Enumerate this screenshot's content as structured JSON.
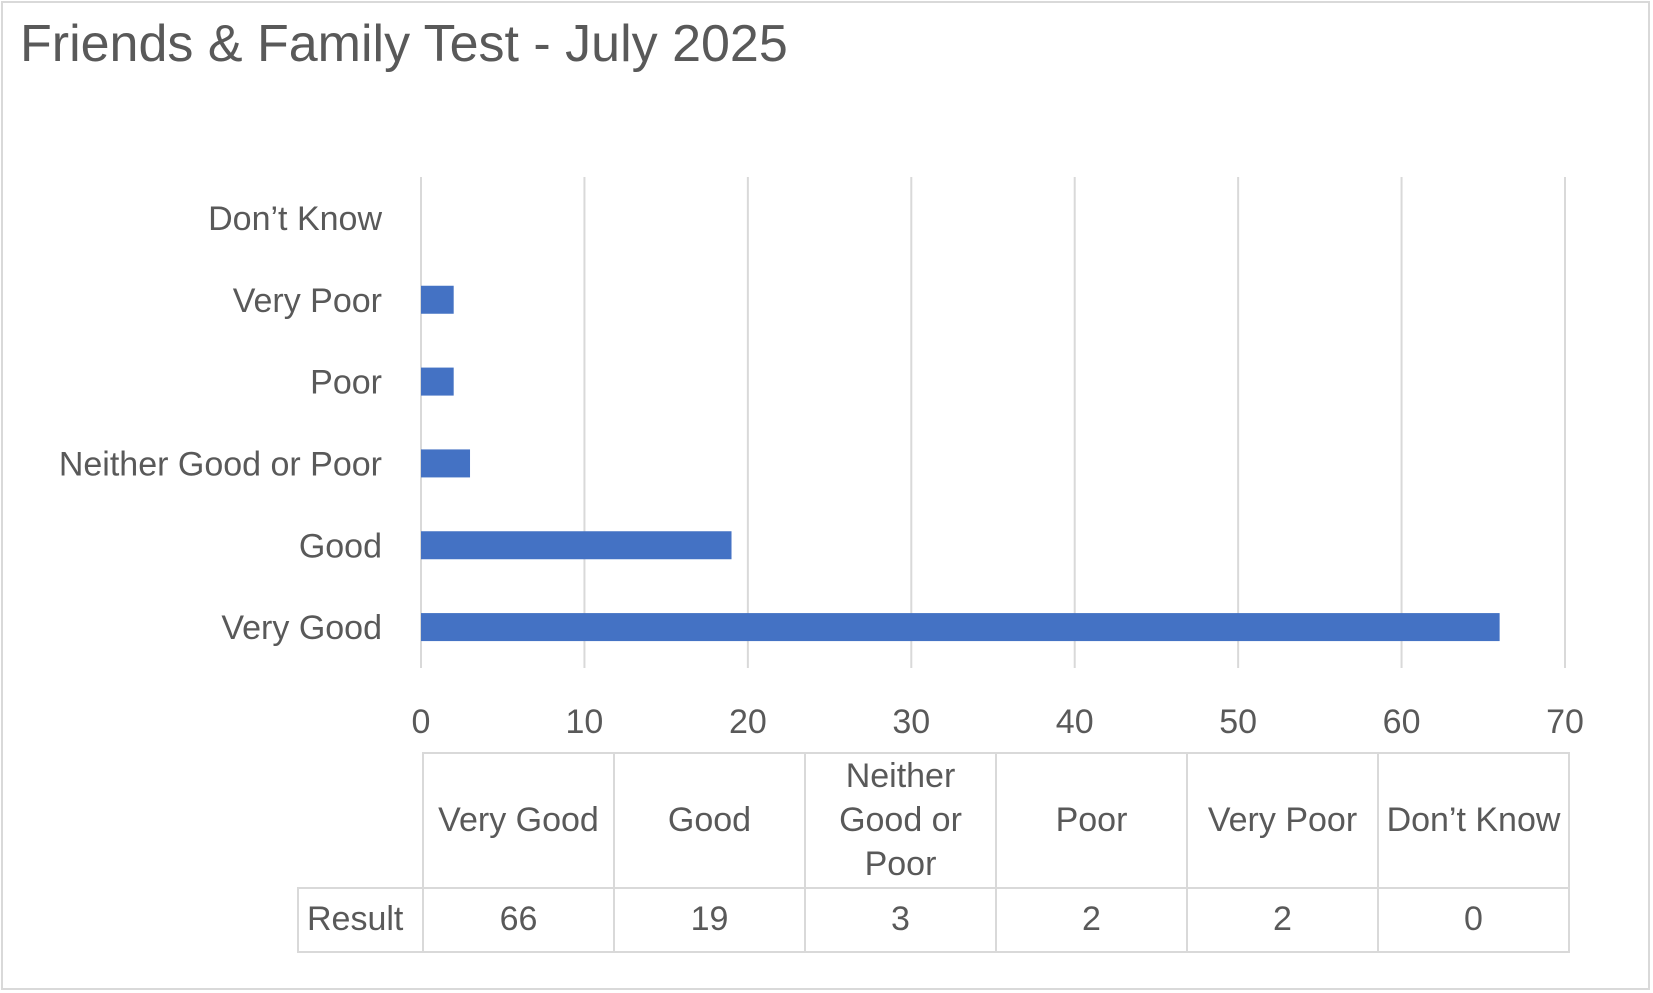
{
  "chart_data": {
    "type": "bar",
    "orientation": "horizontal",
    "title": "Friends & Family Test - July 2025",
    "categories": [
      "Very Good",
      "Good",
      "Neither Good or Poor",
      "Poor",
      "Very Poor",
      "Don’t Know"
    ],
    "table_headers": [
      "Very Good",
      "Good",
      "Neither Good or Poor",
      "Poor",
      "Very Poor",
      "Don’t Know"
    ],
    "series": [
      {
        "name": "Result",
        "values": [
          66,
          19,
          3,
          2,
          2,
          0
        ]
      }
    ],
    "xlim": [
      0,
      70
    ],
    "xticks": [
      0,
      10,
      20,
      30,
      40,
      50,
      60,
      70
    ],
    "xlabel": "",
    "ylabel": "",
    "grid": true,
    "colors": {
      "bar": "#4472c4",
      "grid": "#d9d9d9",
      "text": "#595959"
    }
  }
}
